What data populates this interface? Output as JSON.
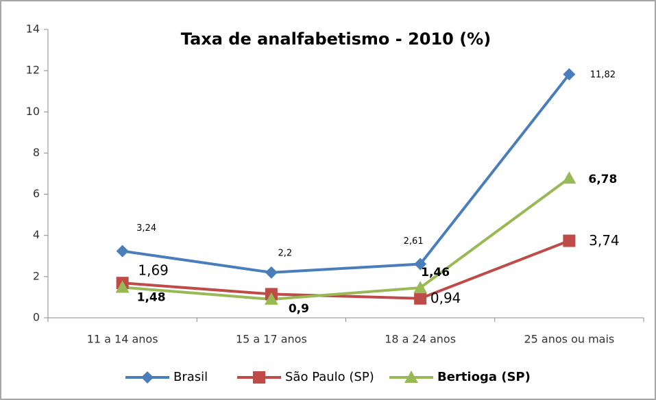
{
  "chart_data": {
    "type": "line",
    "title": "Taxa de analfabetismo - 2010 (%)",
    "categories": [
      "11 a 14 anos",
      "15 a 17 anos",
      "18 a 24 anos",
      "25 anos ou mais"
    ],
    "series": [
      {
        "name": "Brasil",
        "color": "#4a7ebb",
        "marker": "diamond",
        "values": [
          3.24,
          2.2,
          2.61,
          11.82
        ],
        "value_labels": [
          "3,24",
          "2,2",
          "2,61",
          "11,82"
        ]
      },
      {
        "name": "São Paulo (SP)",
        "color": "#be4b48",
        "marker": "square",
        "values": [
          1.69,
          1.15,
          0.94,
          3.74
        ],
        "value_labels": [
          "1,69",
          null,
          "0,94",
          "3,74"
        ]
      },
      {
        "name": "Bertioga (SP)",
        "color": "#98b954",
        "marker": "triangle",
        "values": [
          1.48,
          0.9,
          1.46,
          6.78
        ],
        "value_labels": [
          "1,48",
          "0,9",
          "1,46",
          "6,78"
        ]
      }
    ],
    "ylim": [
      0,
      14
    ],
    "yticks": [
      0,
      2,
      4,
      6,
      8,
      10,
      12,
      14
    ],
    "legend": "bottom"
  }
}
